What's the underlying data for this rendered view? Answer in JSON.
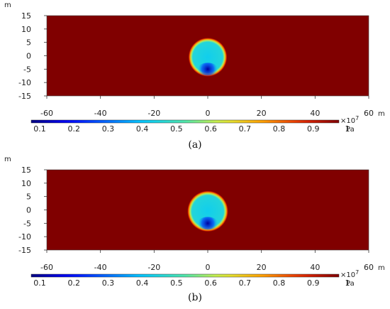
{
  "chart_data": [
    {
      "type": "heatmap",
      "caption": "(a)",
      "x_unit": "m",
      "y_unit": "m",
      "xlim": [
        -60,
        60
      ],
      "ylim": [
        -15,
        15
      ],
      "x_ticks": [
        -60,
        -40,
        -20,
        0,
        20,
        40,
        60
      ],
      "y_ticks": [
        15,
        10,
        5,
        0,
        -5,
        -10,
        -15
      ],
      "colorbar": {
        "ticks": [
          "0.1",
          "0.2",
          "0.3",
          "0.4",
          "0.5",
          "0.6",
          "0.7",
          "0.8",
          "0.9",
          "1"
        ],
        "exponent": "×10",
        "exponent_power": "7",
        "unit": "Pa",
        "range": [
          0.1,
          1.0
        ]
      },
      "field": {
        "background_value": 1.0,
        "inner_value": 0.45,
        "min_value": 0.12,
        "low_region_center": [
          0,
          -5
        ],
        "circle_center": [
          0,
          -0.5
        ],
        "circle_radius": 7.2
      }
    },
    {
      "type": "heatmap",
      "caption": "(b)",
      "x_unit": "m",
      "y_unit": "m",
      "xlim": [
        -60,
        60
      ],
      "ylim": [
        -15,
        15
      ],
      "x_ticks": [
        -60,
        -40,
        -20,
        0,
        20,
        40,
        60
      ],
      "y_ticks": [
        15,
        10,
        5,
        0,
        -5,
        -10,
        -15
      ],
      "colorbar": {
        "ticks": [
          "0.1",
          "0.2",
          "0.3",
          "0.4",
          "0.5",
          "0.6",
          "0.7",
          "0.8",
          "0.9",
          "1"
        ],
        "exponent": "×10",
        "exponent_power": "7",
        "unit": "Pa",
        "range": [
          0.1,
          1.0
        ]
      },
      "field": {
        "background_value": 1.0,
        "inner_value": 0.45,
        "min_value": 0.12,
        "low_region_center": [
          0,
          -5
        ],
        "circle_center": [
          0,
          -0.5
        ],
        "circle_radius": 7.6
      }
    }
  ]
}
